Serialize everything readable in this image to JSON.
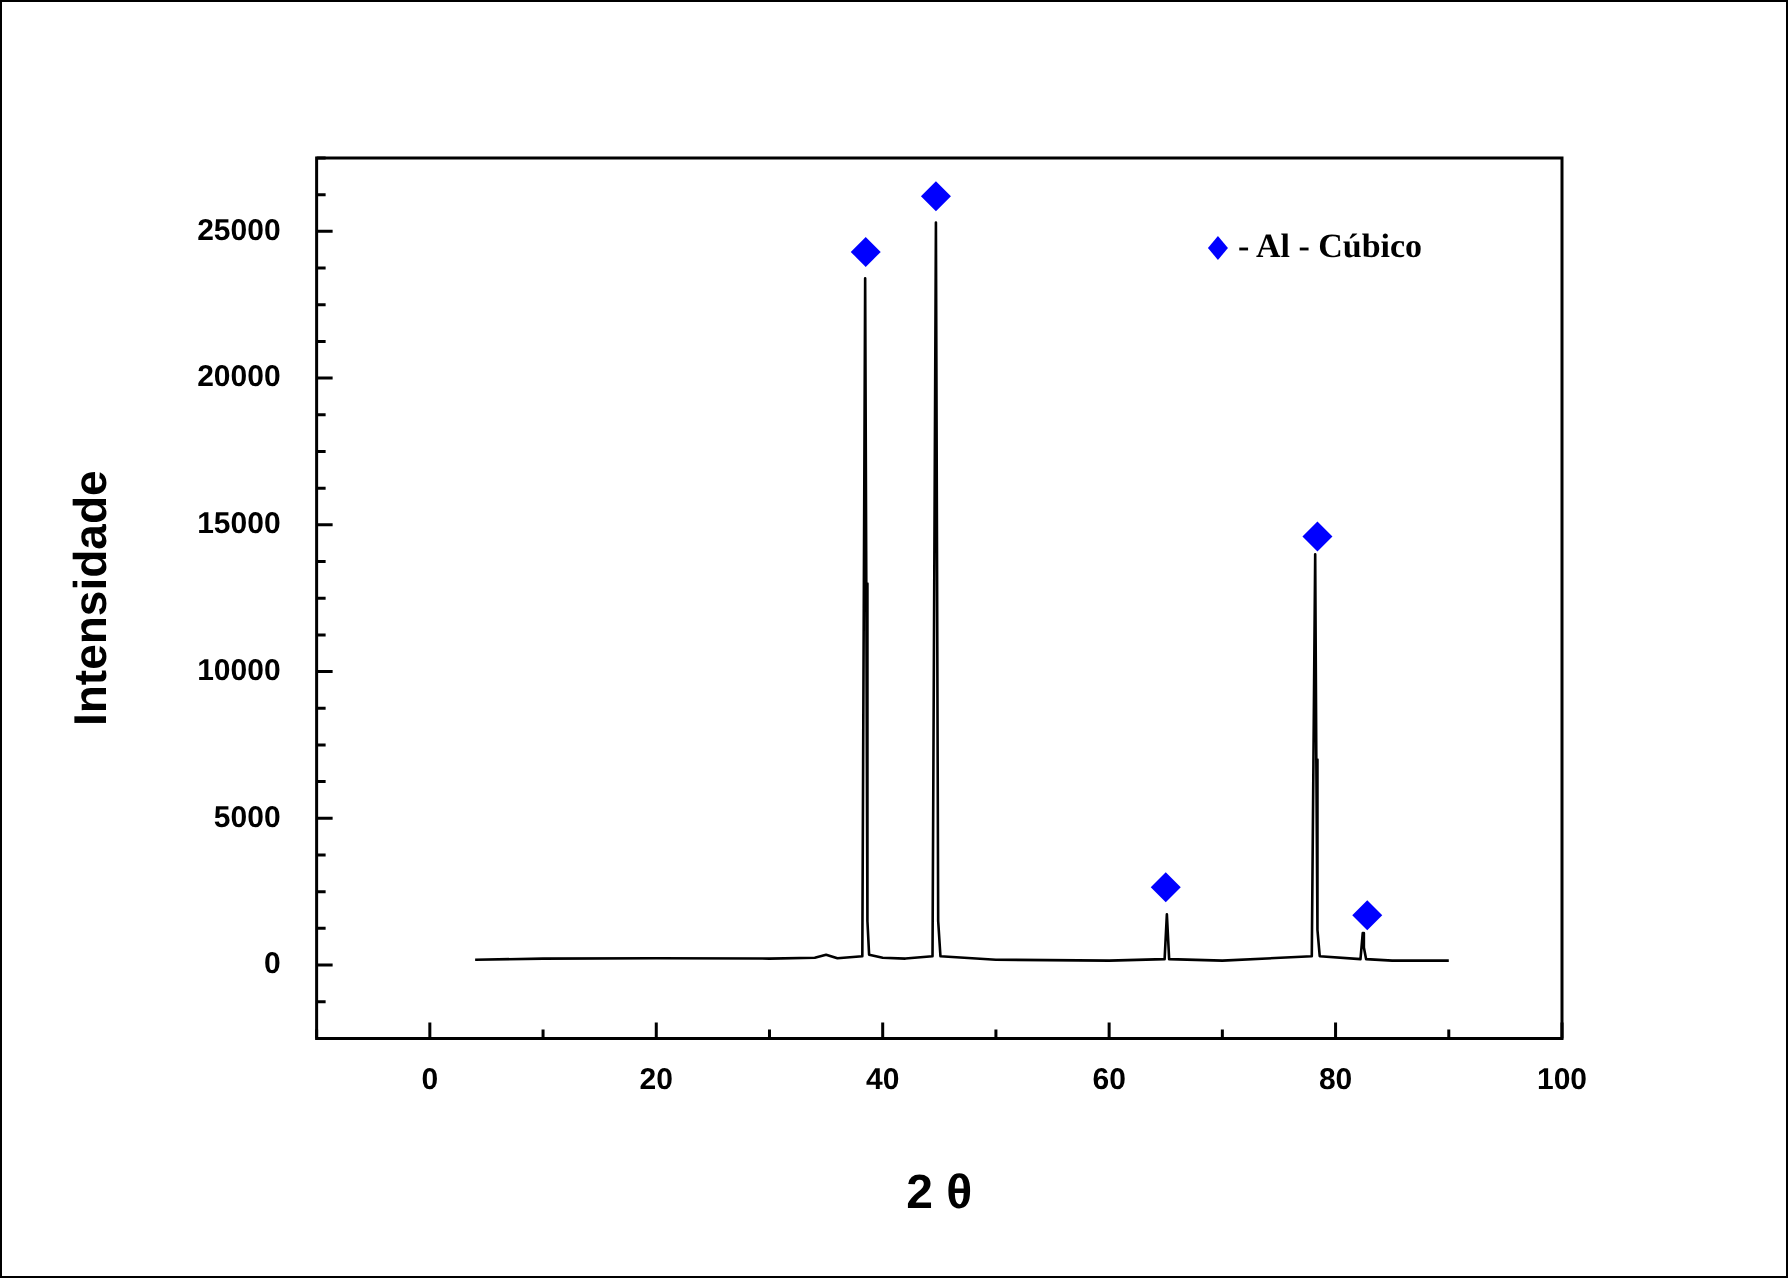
{
  "chart_data": {
    "type": "line",
    "xlabel": "2 θ",
    "ylabel": "Intensidade",
    "xlim": [
      -10,
      100
    ],
    "xticks": [
      0,
      20,
      40,
      60,
      80,
      100
    ],
    "ylim": [
      -2500,
      27500
    ],
    "yticks": [
      0,
      5000,
      10000,
      15000,
      20000,
      25000
    ],
    "grid": false,
    "legend": "top right",
    "line_style": "solid",
    "series": [
      {
        "color": "#000000",
        "marker": "none",
        "x": [
          4,
          10,
          20,
          30,
          34,
          35,
          36,
          38.2,
          38.45,
          38.55,
          38.65,
          38.8,
          40,
          42,
          44.4,
          44.7,
          44.8,
          44.9,
          45.1,
          50,
          60,
          64.9,
          65.1,
          65.3,
          70,
          77.9,
          78.2,
          78.3,
          78.4,
          78.6,
          82.2,
          82.4,
          82.5,
          82.7,
          85,
          90
        ],
        "values": [
          180,
          220,
          230,
          220,
          250,
          350,
          230,
          300,
          23400,
          13000,
          1500,
          350,
          250,
          220,
          300,
          25300,
          13600,
          1500,
          300,
          180,
          150,
          200,
          1730,
          200,
          150,
          300,
          14000,
          7000,
          1200,
          300,
          200,
          1090,
          600,
          200,
          150,
          150
        ]
      },
      {
        "type": "scatter",
        "name": "- Al - Cúbico",
        "color": "#0000ff",
        "marker": "diamond",
        "x": [
          38.5,
          44.7,
          65.0,
          78.4,
          82.8
        ],
        "values": [
          24300,
          26200,
          2650,
          14600,
          1700
        ]
      }
    ]
  }
}
